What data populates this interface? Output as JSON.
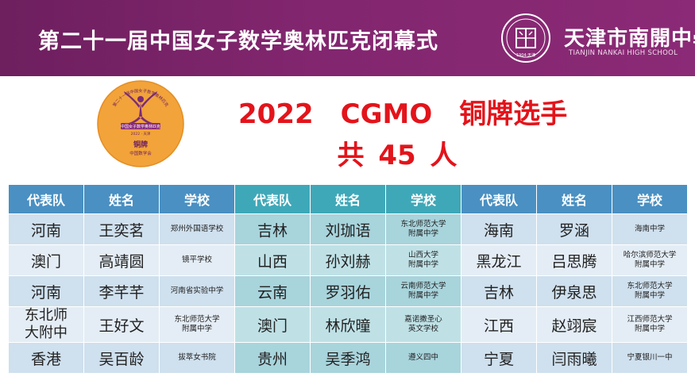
{
  "header": {
    "title": "第二十一届中国女子数学奥林匹克闭幕式",
    "school_name_cn": "天津市南開中學",
    "school_name_en": "TIANJIN NANKAI HIGH SCHOOL",
    "seal_text": "1904·天津"
  },
  "medal": {
    "top_text": "第二十一届中国女子数学奥林匹克",
    "band_text": "中国女子数学奥林匹克",
    "year_text": "2022 · 天津",
    "medal_label": "铜牌",
    "org": "中国数学会"
  },
  "award": {
    "title": "2022　CGMO　铜牌选手",
    "count": "共 45 人"
  },
  "table": {
    "headers": [
      "代表队",
      "姓名",
      "学校",
      "代表队",
      "姓名",
      "学校",
      "代表队",
      "姓名",
      "学校"
    ],
    "rows": [
      [
        {
          "team": [
            "河南"
          ],
          "name": "王奕茗",
          "school": [
            "郑州外国语学校"
          ]
        },
        {
          "team": [
            "吉林"
          ],
          "name": "刘珈语",
          "school": [
            "东北师范大学",
            "附属中学"
          ]
        },
        {
          "team": [
            "海南"
          ],
          "name": "罗涵",
          "school": [
            "海南中学"
          ]
        }
      ],
      [
        {
          "team": [
            "澳门"
          ],
          "name": "高靖圆",
          "school": [
            "镜平学校"
          ]
        },
        {
          "team": [
            "山西"
          ],
          "name": "孙刘赫",
          "school": [
            "山西大学",
            "附属中学"
          ]
        },
        {
          "team": [
            "黑龙江"
          ],
          "name": "吕思腾",
          "school": [
            "哈尔滨师范大学",
            "附属中学"
          ]
        }
      ],
      [
        {
          "team": [
            "河南"
          ],
          "name": "李芊芊",
          "school": [
            "河南省实验中学"
          ]
        },
        {
          "team": [
            "云南"
          ],
          "name": "罗羽佑",
          "school": [
            "云南师范大学",
            "附属中学"
          ]
        },
        {
          "team": [
            "吉林"
          ],
          "name": "伊泉思",
          "school": [
            "东北师范大学",
            "附属中学"
          ]
        }
      ],
      [
        {
          "team": [
            "东北师",
            "大附中"
          ],
          "name": "王好文",
          "school": [
            "东北师范大学",
            "附属中学"
          ]
        },
        {
          "team": [
            "澳门"
          ],
          "name": "林欣曈",
          "school": [
            "嘉诺撒圣心",
            "英文学校"
          ]
        },
        {
          "team": [
            "江西"
          ],
          "name": "赵翊宸",
          "school": [
            "江西师范大学",
            "附属中学"
          ]
        }
      ],
      [
        {
          "team": [
            "香港"
          ],
          "name": "吴百龄",
          "school": [
            "拔萃女书院"
          ]
        },
        {
          "team": [
            "贵州"
          ],
          "name": "吴季鸿",
          "school": [
            "遵义四中"
          ]
        },
        {
          "team": [
            "宁夏"
          ],
          "name": "闫雨曦",
          "school": [
            "宁夏银川一中"
          ]
        }
      ]
    ]
  },
  "colors": {
    "header_bg": "#82266f",
    "title_red": "#e3141b",
    "table_header_blue": "#4a90c2",
    "table_header_teal": "#3fa8b8",
    "medal_orange": "#f2a33a"
  }
}
